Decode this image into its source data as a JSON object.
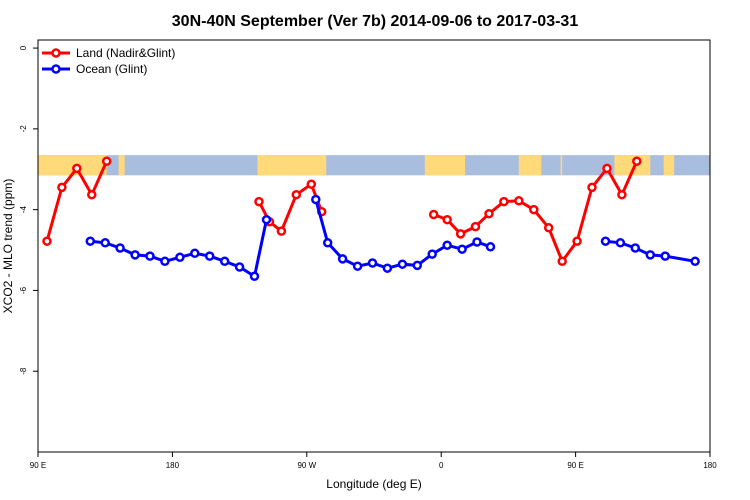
{
  "chart_data": {
    "type": "line",
    "title": "30N-40N September (Ver 7b)   2014-09-06 to 2017-03-31",
    "xlabel": "Longitude (deg E)",
    "ylabel": "XCO2 - MLO trend (ppm)",
    "xlim": [
      90,
      540
    ],
    "ylim": [
      -10,
      0.2
    ],
    "x_ticks": [
      {
        "value": 90,
        "label": "90 E"
      },
      {
        "value": 180,
        "label": "180"
      },
      {
        "value": 270,
        "label": "90 W"
      },
      {
        "value": 360,
        "label": "0"
      },
      {
        "value": 450,
        "label": "90 E"
      },
      {
        "value": 540,
        "label": "180"
      }
    ],
    "y_ticks": [
      {
        "value": 0,
        "label": "0"
      },
      {
        "value": -2,
        "label": "-2"
      },
      {
        "value": -4,
        "label": "-4"
      },
      {
        "value": -6,
        "label": "-6"
      },
      {
        "value": -8,
        "label": "-8"
      }
    ],
    "grid": false,
    "legend_position": "top-left",
    "land_ocean_band": {
      "y_top": -2.65,
      "y_bottom": -3.15,
      "land_color": "#ffd97a",
      "ocean_color": "#a9bede"
    },
    "land_ranges": [
      [
        90,
        136
      ],
      [
        144,
        148
      ],
      [
        237,
        283
      ],
      [
        349,
        376
      ],
      [
        412,
        427
      ],
      [
        440,
        441
      ],
      [
        476,
        500
      ],
      [
        509,
        516
      ]
    ],
    "series": [
      {
        "name": "Land (Nadir&Glint)",
        "color": "#ff0000",
        "segments": [
          [
            [
              96,
              -4.78
            ],
            [
              106,
              -3.45
            ],
            [
              116,
              -2.98
            ],
            [
              126,
              -3.63
            ],
            [
              136,
              -2.8
            ]
          ],
          [
            [
              238,
              -3.8
            ],
            [
              245,
              -4.3
            ],
            [
              253,
              -4.53
            ],
            [
              263,
              -3.63
            ],
            [
              273,
              -3.37
            ],
            [
              280,
              -4.05
            ]
          ],
          [
            [
              355,
              -4.12
            ],
            [
              364,
              -4.25
            ],
            [
              373,
              -4.6
            ],
            [
              383,
              -4.42
            ],
            [
              392,
              -4.1
            ],
            [
              402,
              -3.8
            ],
            [
              412,
              -3.78
            ],
            [
              422,
              -4.0
            ],
            [
              432,
              -4.45
            ],
            [
              441,
              -5.28
            ],
            [
              451,
              -4.78
            ],
            [
              461,
              -3.45
            ],
            [
              471,
              -2.98
            ],
            [
              481,
              -3.63
            ],
            [
              491,
              -2.8
            ]
          ]
        ]
      },
      {
        "name": "Ocean (Glint)",
        "color": "#0000ff",
        "segments": [
          [
            [
              125,
              -4.78
            ],
            [
              135,
              -4.82
            ],
            [
              145,
              -4.95
            ],
            [
              155,
              -5.12
            ],
            [
              165,
              -5.15
            ],
            [
              175,
              -5.28
            ],
            [
              185,
              -5.18
            ],
            [
              195,
              -5.08
            ],
            [
              205,
              -5.15
            ],
            [
              215,
              -5.28
            ],
            [
              225,
              -5.42
            ],
            [
              235,
              -5.65
            ],
            [
              243,
              -4.25
            ]
          ],
          [
            [
              276,
              -3.75
            ],
            [
              284,
              -4.82
            ],
            [
              294,
              -5.22
            ],
            [
              304,
              -5.4
            ],
            [
              314,
              -5.32
            ],
            [
              324,
              -5.45
            ],
            [
              334,
              -5.35
            ],
            [
              344,
              -5.38
            ],
            [
              354,
              -5.1
            ],
            [
              364,
              -4.88
            ],
            [
              374,
              -4.98
            ],
            [
              384,
              -4.8
            ],
            [
              393,
              -4.92
            ]
          ],
          [
            [
              470,
              -4.78
            ],
            [
              480,
              -4.82
            ],
            [
              490,
              -4.95
            ],
            [
              500,
              -5.12
            ],
            [
              510,
              -5.15
            ],
            [
              530,
              -5.28
            ]
          ]
        ]
      }
    ]
  }
}
